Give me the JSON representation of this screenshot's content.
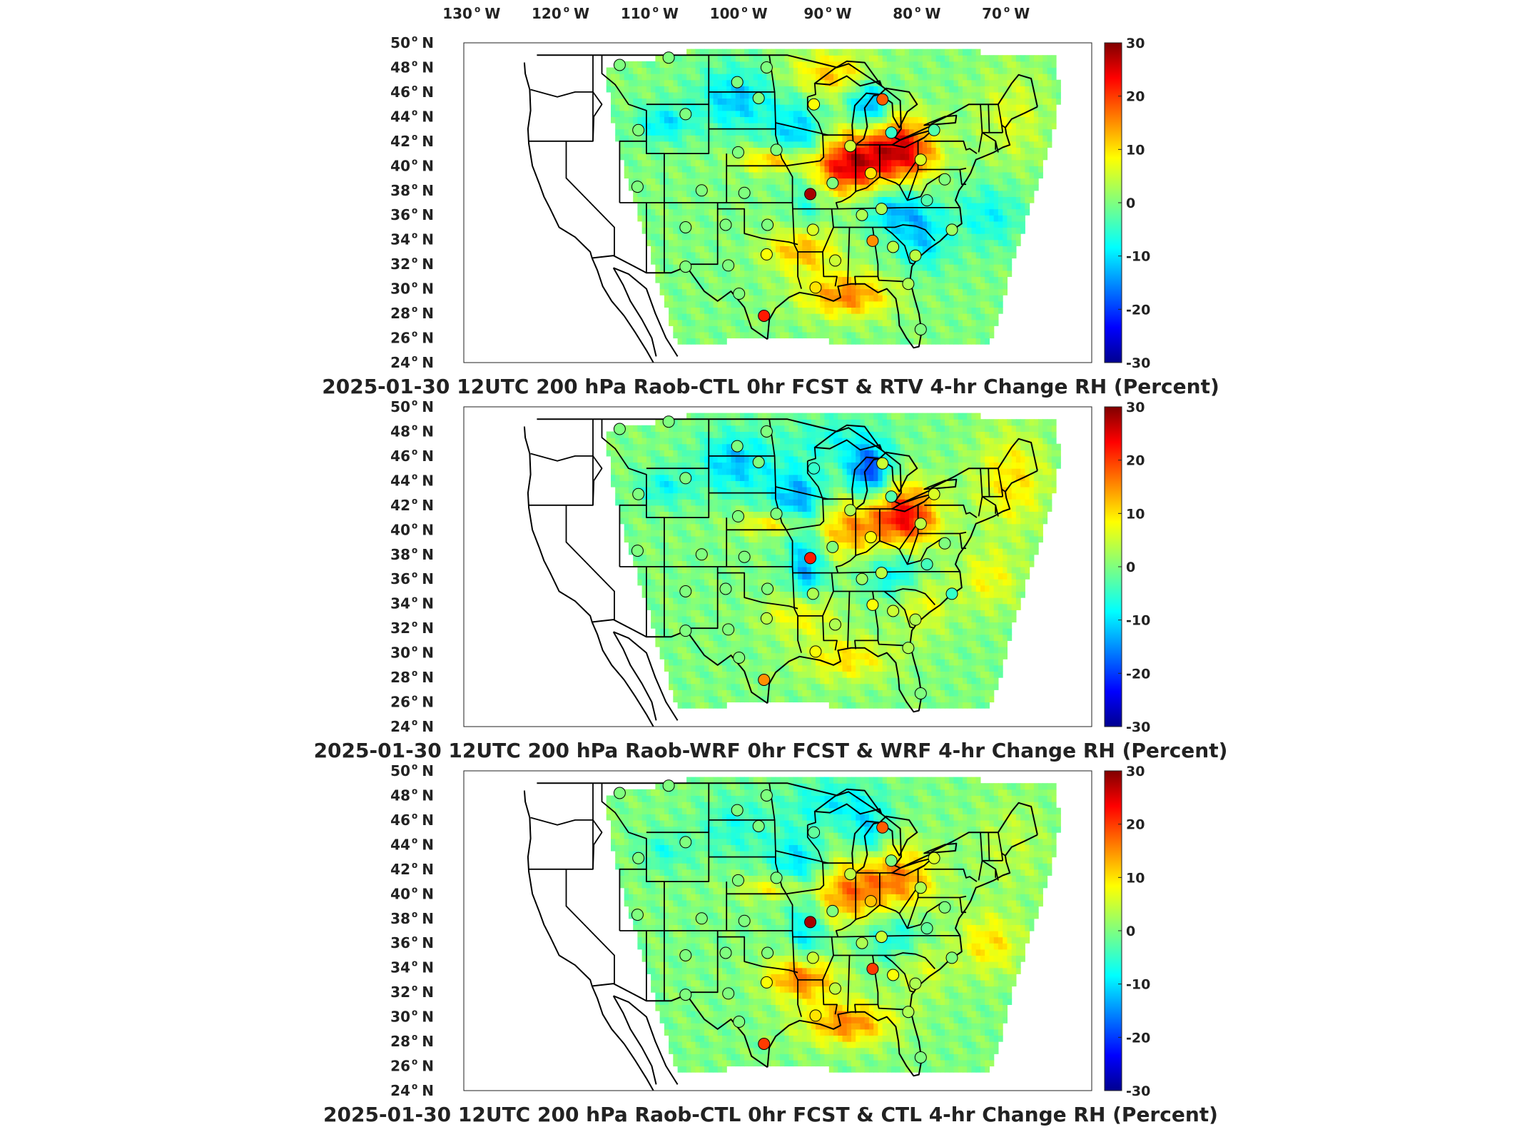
{
  "top_lon_labels": [
    "130",
    "120",
    "110",
    "100",
    "90",
    "80",
    "70"
  ],
  "lon_suffix": "W",
  "lat_labels": [
    "50",
    "48",
    "46",
    "44",
    "42",
    "40",
    "38",
    "36",
    "34",
    "32",
    "30",
    "28",
    "26",
    "24"
  ],
  "lat_suffix": "N",
  "colorbar": {
    "ticks": [
      "30",
      "20",
      "10",
      "0",
      "-10",
      "-20",
      "-30"
    ],
    "range": [
      -30,
      30
    ],
    "colormap": "jet"
  },
  "panels": [
    {
      "title": "2025-01-30 12UTC 200 hPa Raob-CTL 0hr FCST & RTV 4-hr Change RH (Percent)",
      "variant": 0
    },
    {
      "title": "2025-01-30 12UTC 200 hPa Raob-WRF 0hr FCST & WRF 4-hr Change RH (Percent)",
      "variant": 1
    },
    {
      "title": "2025-01-30 12UTC 200 hPa Raob-CTL 0hr FCST & CTL 4-hr Change RH (Percent)",
      "variant": 2
    }
  ],
  "stations": [
    {
      "lon": -114,
      "lat": 48.2,
      "v": [
        0,
        0,
        0
      ]
    },
    {
      "lon": -108.5,
      "lat": 48.8,
      "v": [
        0,
        0,
        0
      ]
    },
    {
      "lon": -100.8,
      "lat": 46.8,
      "v": [
        0,
        0,
        0
      ]
    },
    {
      "lon": -97.5,
      "lat": 48.0,
      "v": [
        0,
        0,
        0
      ]
    },
    {
      "lon": -98.4,
      "lat": 45.5,
      "v": [
        0,
        0,
        0
      ]
    },
    {
      "lon": -92.2,
      "lat": 45.0,
      "v": [
        8,
        -5,
        -2
      ]
    },
    {
      "lon": -106.6,
      "lat": 44.2,
      "v": [
        0,
        0,
        0
      ]
    },
    {
      "lon": -111.9,
      "lat": 42.9,
      "v": [
        0,
        0,
        0
      ]
    },
    {
      "lon": -100.7,
      "lat": 41.1,
      "v": [
        0,
        0,
        0
      ]
    },
    {
      "lon": -96.4,
      "lat": 41.3,
      "v": [
        0,
        0,
        0
      ]
    },
    {
      "lon": -88.1,
      "lat": 41.6,
      "v": [
        5,
        3,
        4
      ]
    },
    {
      "lon": -84.5,
      "lat": 45.4,
      "v": [
        18,
        5,
        18
      ]
    },
    {
      "lon": -83.5,
      "lat": 42.7,
      "v": [
        -5,
        -3,
        0
      ]
    },
    {
      "lon": -78.7,
      "lat": 42.9,
      "v": [
        -3,
        6,
        6
      ]
    },
    {
      "lon": -85.8,
      "lat": 39.4,
      "v": [
        10,
        8,
        12
      ]
    },
    {
      "lon": -80.2,
      "lat": 40.5,
      "v": [
        6,
        4,
        3
      ]
    },
    {
      "lon": -84.6,
      "lat": 36.5,
      "v": [
        3,
        4,
        5
      ]
    },
    {
      "lon": -90.1,
      "lat": 38.6,
      "v": [
        0,
        0,
        0
      ]
    },
    {
      "lon": -92.6,
      "lat": 37.7,
      "v": [
        28,
        22,
        28
      ]
    },
    {
      "lon": -100.0,
      "lat": 37.8,
      "v": [
        0,
        0,
        0
      ]
    },
    {
      "lon": -104.8,
      "lat": 38.0,
      "v": [
        0,
        0,
        0
      ]
    },
    {
      "lon": -112.0,
      "lat": 38.3,
      "v": [
        0,
        0,
        0
      ]
    },
    {
      "lon": -106.6,
      "lat": 35.0,
      "v": [
        0,
        0,
        0
      ]
    },
    {
      "lon": -102.1,
      "lat": 35.2,
      "v": [
        0,
        0,
        0
      ]
    },
    {
      "lon": -97.4,
      "lat": 35.2,
      "v": [
        0,
        0,
        0
      ]
    },
    {
      "lon": -92.3,
      "lat": 34.8,
      "v": [
        6,
        3,
        5
      ]
    },
    {
      "lon": -86.8,
      "lat": 36.0,
      "v": [
        3,
        2,
        3
      ]
    },
    {
      "lon": -83.3,
      "lat": 33.4,
      "v": [
        4,
        5,
        8
      ]
    },
    {
      "lon": -85.6,
      "lat": 33.9,
      "v": [
        15,
        8,
        20
      ]
    },
    {
      "lon": -79.5,
      "lat": 37.2,
      "v": [
        -3,
        -4,
        -2
      ]
    },
    {
      "lon": -77.5,
      "lat": 38.9,
      "v": [
        0,
        0,
        0
      ]
    },
    {
      "lon": -76.7,
      "lat": 34.8,
      "v": [
        2,
        -5,
        0
      ]
    },
    {
      "lon": -80.8,
      "lat": 32.7,
      "v": [
        4,
        3,
        3
      ]
    },
    {
      "lon": -89.8,
      "lat": 32.3,
      "v": [
        5,
        3,
        4
      ]
    },
    {
      "lon": -92.0,
      "lat": 30.1,
      "v": [
        10,
        8,
        10
      ]
    },
    {
      "lon": -97.5,
      "lat": 32.8,
      "v": [
        8,
        4,
        8
      ]
    },
    {
      "lon": -101.8,
      "lat": 31.9,
      "v": [
        0,
        0,
        0
      ]
    },
    {
      "lon": -106.6,
      "lat": 31.8,
      "v": [
        0,
        0,
        0
      ]
    },
    {
      "lon": -97.8,
      "lat": 27.8,
      "v": [
        22,
        15,
        20
      ]
    },
    {
      "lon": -100.6,
      "lat": 29.6,
      "v": [
        0,
        0,
        0
      ]
    },
    {
      "lon": -81.6,
      "lat": 30.4,
      "v": [
        3,
        3,
        3
      ]
    },
    {
      "lon": -80.2,
      "lat": 26.7,
      "v": [
        0,
        0,
        0
      ]
    }
  ],
  "anomalies": [
    {
      "lon": -85.5,
      "lat": 42.5,
      "amp": [
        18,
        10,
        12
      ],
      "sx": 4.2,
      "sy": 2.6
    },
    {
      "lon": -88.5,
      "lat": 39.8,
      "amp": [
        22,
        12,
        14
      ],
      "sx": 4.5,
      "sy": 2.2
    },
    {
      "lon": -81.5,
      "lat": 41.0,
      "amp": [
        18,
        20,
        10
      ],
      "sx": 3.5,
      "sy": 2.5
    },
    {
      "lon": -86.0,
      "lat": 44.5,
      "amp": [
        -22,
        -24,
        -14
      ],
      "sx": 2.6,
      "sy": 2.4
    },
    {
      "lon": -94.0,
      "lat": 42.5,
      "amp": [
        -12,
        -14,
        -10
      ],
      "sx": 3.2,
      "sy": 2.8
    },
    {
      "lon": -101.0,
      "lat": 45.5,
      "amp": [
        -12,
        -12,
        -6
      ],
      "sx": 4.0,
      "sy": 2.5
    },
    {
      "lon": -109.0,
      "lat": 43.5,
      "amp": [
        -10,
        -8,
        -6
      ],
      "sx": 3.0,
      "sy": 1.5
    },
    {
      "lon": -93.5,
      "lat": 33.2,
      "amp": [
        14,
        10,
        18
      ],
      "sx": 3.8,
      "sy": 1.8
    },
    {
      "lon": -88.5,
      "lat": 29.5,
      "amp": [
        16,
        10,
        16
      ],
      "sx": 5.0,
      "sy": 1.8
    },
    {
      "lon": -83.0,
      "lat": 36.5,
      "amp": [
        -12,
        -10,
        -8
      ],
      "sx": 3.5,
      "sy": 2.0
    },
    {
      "lon": -80.0,
      "lat": 34.0,
      "amp": [
        -10,
        8,
        6
      ],
      "sx": 3.0,
      "sy": 2.5
    },
    {
      "lon": -72.5,
      "lat": 36.0,
      "amp": [
        -8,
        8,
        10
      ],
      "sx": 3.5,
      "sy": 2.5
    },
    {
      "lon": -93.0,
      "lat": 37.0,
      "amp": [
        -6,
        -14,
        -10
      ],
      "sx": 2.0,
      "sy": 3.0
    },
    {
      "lon": -96.5,
      "lat": 40.5,
      "amp": [
        14,
        12,
        10
      ],
      "sx": 4.0,
      "sy": 1.0
    },
    {
      "lon": -90.0,
      "lat": 47.5,
      "amp": [
        12,
        -6,
        -8
      ],
      "sx": 5.0,
      "sy": 1.8
    },
    {
      "lon": -70.0,
      "lat": 44.0,
      "amp": [
        6,
        10,
        4
      ],
      "sx": 4.0,
      "sy": 4.0
    }
  ]
}
